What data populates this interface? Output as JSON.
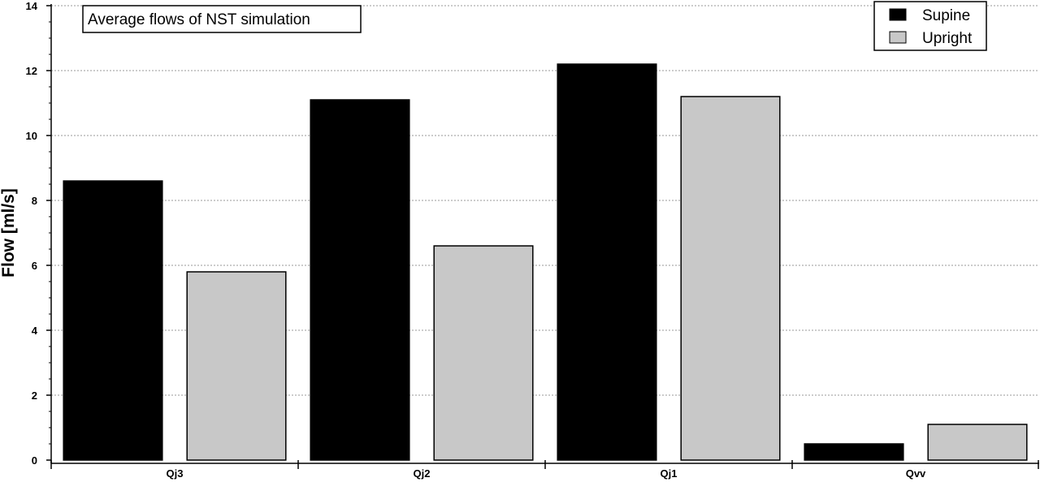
{
  "chart_data": {
    "type": "bar",
    "title": "Average flows of NST simulation",
    "xlabel": "",
    "ylabel": "Flow [ml/s]",
    "ylim": [
      0,
      14
    ],
    "yticks": [
      0,
      2,
      4,
      6,
      8,
      10,
      12,
      14
    ],
    "categories": [
      "Qj3",
      "Qj2",
      "Qj1",
      "Qvv"
    ],
    "series": [
      {
        "name": "Supine",
        "color": "#000000",
        "values": [
          8.6,
          11.1,
          12.2,
          0.5
        ]
      },
      {
        "name": "Upright",
        "color": "#c8c8c8",
        "values": [
          5.8,
          6.6,
          11.2,
          1.1
        ]
      }
    ],
    "grid": "horizontal dotted",
    "legend_position": "top-right"
  }
}
